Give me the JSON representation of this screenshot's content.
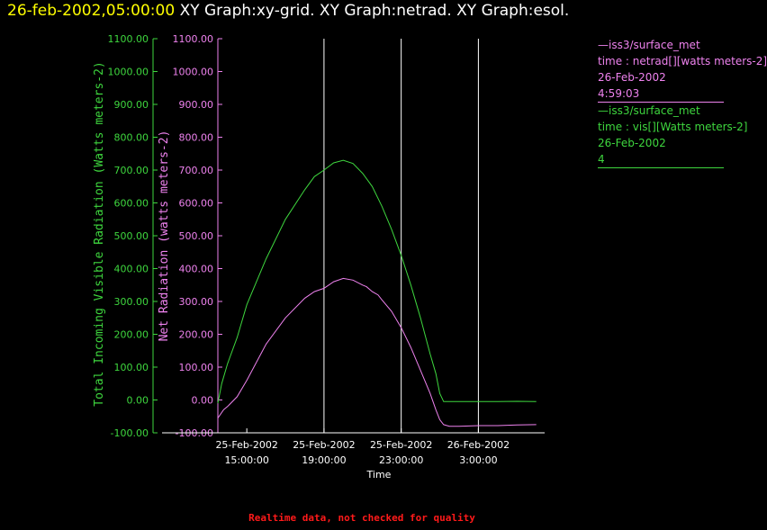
{
  "header": {
    "timestamp": "26-feb-2002,05:00:00",
    "titles": "XY Graph:xy-grid.  XY Graph:netrad.  XY Graph:esol."
  },
  "footer": "Realtime data, not checked for quality",
  "legend": [
    {
      "lines": [
        "—iss3/surface_met",
        "time : netrad[][watts meters-2]",
        "26-Feb-2002",
        "4:59:03"
      ],
      "color": "#ee82ee"
    },
    {
      "lines": [
        "—iss3/surface_met",
        "time : vis[][Watts meters-2]",
        "26-Feb-2002",
        "4"
      ],
      "color": "#3ed63e"
    }
  ],
  "chart_data": {
    "type": "line",
    "xlabel": "Time",
    "x_ticks": [
      {
        "date": "25-Feb-2002",
        "time": "15:00:00"
      },
      {
        "date": "25-Feb-2002",
        "time": "19:00:00"
      },
      {
        "date": "25-Feb-2002",
        "time": "23:00:00"
      },
      {
        "date": "26-Feb-2002",
        "time": "3:00:00"
      }
    ],
    "x_tick_hours": [
      15,
      19,
      23,
      27
    ],
    "vertical_grid_hours": [
      19,
      23,
      27
    ],
    "xlim_hours": [
      13.5,
      30.2
    ],
    "left_axis": {
      "label": "Total Incoming Visible Radiation (Watts meters-2)",
      "color": "#3ed63e",
      "ylim": [
        -100,
        1100
      ],
      "ticks": [
        "-100.00",
        "0.00",
        "100.00",
        "200.00",
        "300.00",
        "400.00",
        "500.00",
        "600.00",
        "700.00",
        "800.00",
        "900.00",
        "1000.00",
        "1100.00"
      ]
    },
    "right_axis": {
      "label": "Net Radiation (watts meters-2)",
      "color": "#ee82ee",
      "ylim": [
        -100,
        1100
      ],
      "ticks": [
        "-100.00",
        "0.00",
        "100.00",
        "200.00",
        "300.00",
        "400.00",
        "500.00",
        "600.00",
        "700.00",
        "800.00",
        "900.00",
        "1000.00",
        "1100.00"
      ]
    },
    "series": [
      {
        "name": "vis",
        "axis": "left",
        "color": "#3ed63e",
        "x": [
          13.5,
          13.7,
          14.0,
          14.5,
          15.0,
          16.0,
          17.0,
          18.0,
          18.5,
          19.0,
          19.5,
          20.0,
          20.5,
          21.0,
          21.5,
          22.0,
          22.5,
          23.0,
          23.5,
          24.0,
          24.5,
          24.8,
          25.0,
          25.2,
          26.0,
          27.0,
          28.0,
          29.0,
          30.0
        ],
        "y": [
          -10,
          50,
          110,
          190,
          290,
          430,
          550,
          640,
          680,
          700,
          722,
          730,
          720,
          690,
          650,
          590,
          520,
          440,
          350,
          250,
          140,
          80,
          20,
          -5,
          -5,
          -5,
          -5,
          -4,
          -5
        ]
      },
      {
        "name": "netrad",
        "axis": "right",
        "color": "#ee82ee",
        "x": [
          13.5,
          13.8,
          14.0,
          14.5,
          15.0,
          16.0,
          17.0,
          18.0,
          18.5,
          19.0,
          19.5,
          20.0,
          20.5,
          21.0,
          21.2,
          21.5,
          21.8,
          22.0,
          22.5,
          23.0,
          23.5,
          24.0,
          24.5,
          24.8,
          25.0,
          25.2,
          25.5,
          26.0,
          27.0,
          28.0,
          29.0,
          30.0
        ],
        "y": [
          -55,
          -30,
          -20,
          10,
          60,
          170,
          250,
          310,
          330,
          340,
          360,
          370,
          365,
          350,
          345,
          330,
          320,
          305,
          270,
          220,
          160,
          90,
          20,
          -30,
          -60,
          -75,
          -80,
          -80,
          -78,
          -78,
          -76,
          -75
        ]
      }
    ]
  }
}
